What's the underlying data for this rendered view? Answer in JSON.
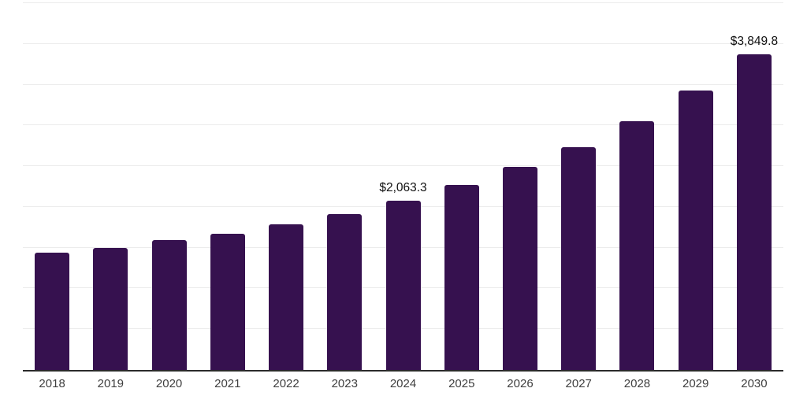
{
  "chart": {
    "background": "#ffffff",
    "bar_color": "#36114f",
    "axis_line_color": "#2b2b2b",
    "gridline_color": "#ececec",
    "data_label_color": "#111111",
    "tick_label_color": "#3f3f3f"
  },
  "chart_data": {
    "type": "bar",
    "title": "",
    "xlabel": "",
    "ylabel": "",
    "categories": [
      "2018",
      "2019",
      "2020",
      "2021",
      "2022",
      "2023",
      "2024",
      "2025",
      "2026",
      "2027",
      "2028",
      "2029",
      "2030"
    ],
    "values": [
      1430.9,
      1485.4,
      1587.9,
      1664.6,
      1779.6,
      1897.5,
      2063.3,
      2255.0,
      2475.5,
      2715.1,
      3028.3,
      3402.0,
      3849.8
    ],
    "point_labels": [
      {
        "category": "2024",
        "text": "$2,063.3"
      },
      {
        "category": "2030",
        "text": "$3,849.8"
      }
    ],
    "ylim": [
      0,
      4470
    ],
    "gridline_count": 9,
    "grid": "horizontal",
    "legend_position": "none"
  }
}
